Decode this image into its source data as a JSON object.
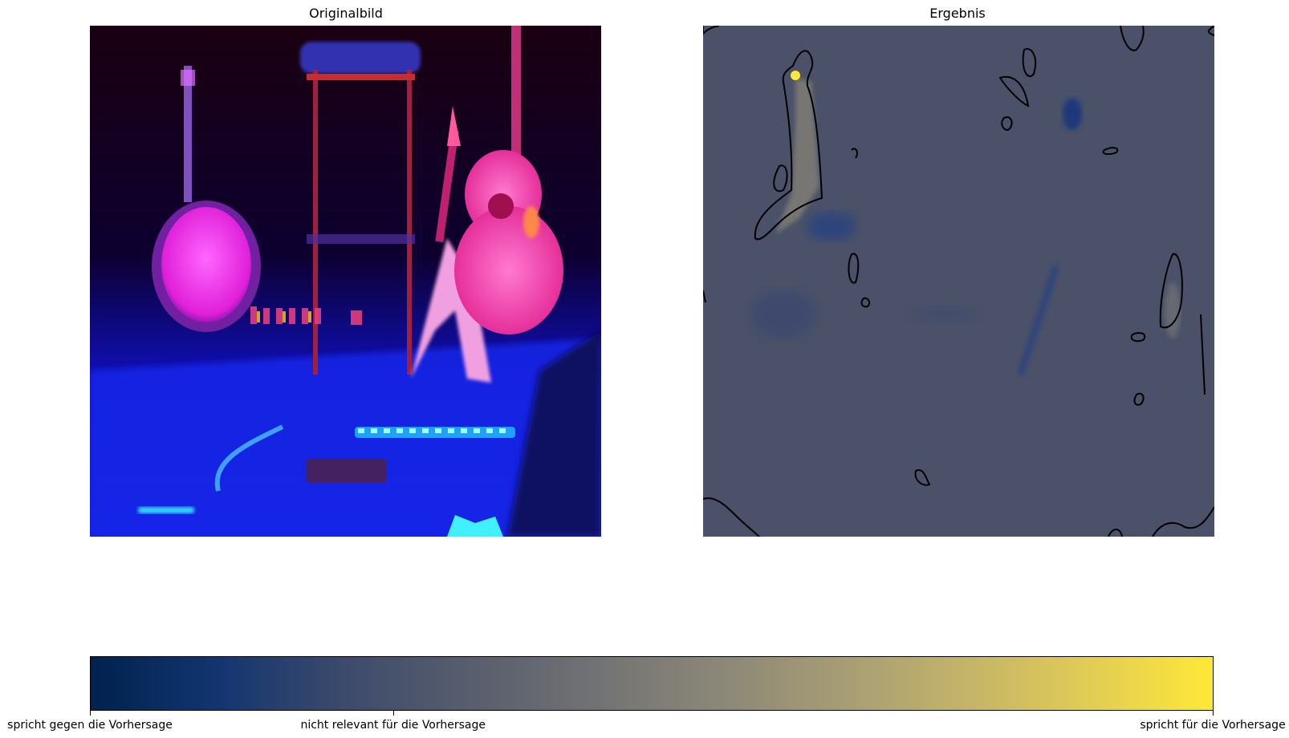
{
  "panels": {
    "left_title": "Originalbild",
    "right_title": "Ergebnis"
  },
  "colorbar": {
    "colormap": "cividis",
    "stops": [
      "#00224e",
      "#123570",
      "#3b496c",
      "#575d6d",
      "#707173",
      "#8a8678",
      "#a59c74",
      "#c3b369",
      "#e1cc55",
      "#fee838"
    ],
    "ticks": [
      {
        "label": "spricht gegen die Vorhersage",
        "value": 0.0
      },
      {
        "label": "nicht relevant für die Vorhersage",
        "value": 0.27
      },
      {
        "label": "spricht für die Vorhersage",
        "value": 1.0
      }
    ]
  },
  "colors": {
    "heatmap_base": "#4a5168",
    "contour": "#000000"
  }
}
